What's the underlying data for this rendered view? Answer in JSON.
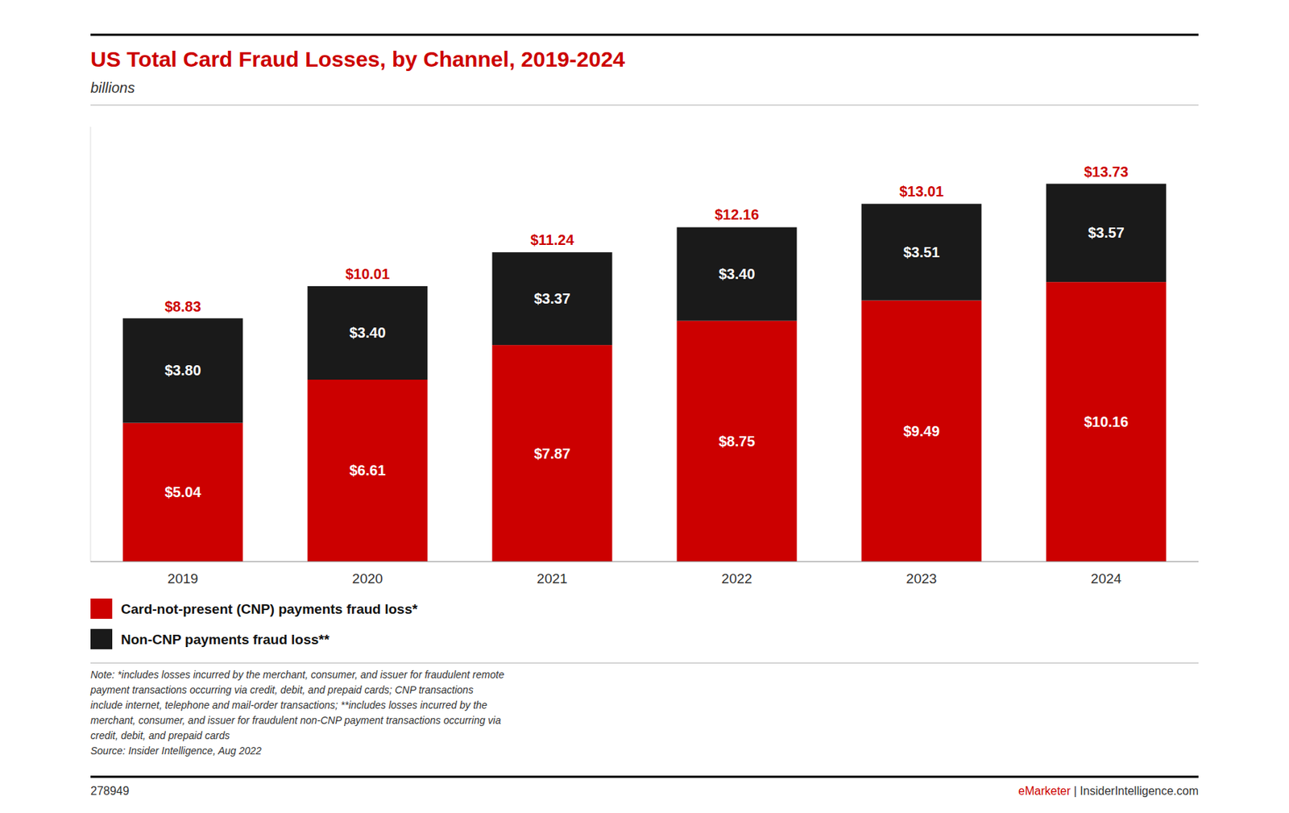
{
  "chart_data": {
    "type": "bar",
    "stacked": true,
    "title": "US Total Card Fraud Losses, by Channel, 2019-2024",
    "subtitle": "billions",
    "categories": [
      "2019",
      "2020",
      "2021",
      "2022",
      "2023",
      "2024"
    ],
    "series": [
      {
        "name": "Card-not-present (CNP) payments fraud loss*",
        "color": "#cc0000",
        "values": [
          5.04,
          6.61,
          7.87,
          8.75,
          9.49,
          10.16
        ],
        "value_labels": [
          "$5.04",
          "$6.61",
          "$7.87",
          "$8.75",
          "$9.49",
          "$10.16"
        ]
      },
      {
        "name": "Non-CNP payments fraud loss**",
        "color": "#1a1a1a",
        "values": [
          3.8,
          3.4,
          3.37,
          3.4,
          3.51,
          3.57
        ],
        "value_labels": [
          "$3.80",
          "$3.40",
          "$3.37",
          "$3.40",
          "$3.51",
          "$3.57"
        ]
      }
    ],
    "totals": [
      8.83,
      10.01,
      11.24,
      12.16,
      13.01,
      13.73
    ],
    "total_labels": [
      "$8.83",
      "$10.01",
      "$11.24",
      "$12.16",
      "$13.01",
      "$13.73"
    ],
    "ylim": [
      0,
      15.8
    ],
    "yticks": [],
    "tick_labels": "x",
    "grid": false,
    "legend": "bottom",
    "data_labels": true,
    "note": "Note: *includes losses incurred by the merchant, consumer, and issuer for fraudulent remote\npayment transactions occurring via credit, debit, and prepaid cards; CNP transactions\ninclude internet, telephone and mail-order transactions; **includes losses incurred by the\nmerchant, consumer, and issuer for fraudulent non-CNP payment transactions occurring via\ncredit, debit, and prepaid cards\nSource: Insider Intelligence, Aug 2022",
    "footer": "278949",
    "footer_brand": "eMarketer",
    "footer_separator": " | ",
    "footer_site": "InsiderIntelligence.com"
  }
}
